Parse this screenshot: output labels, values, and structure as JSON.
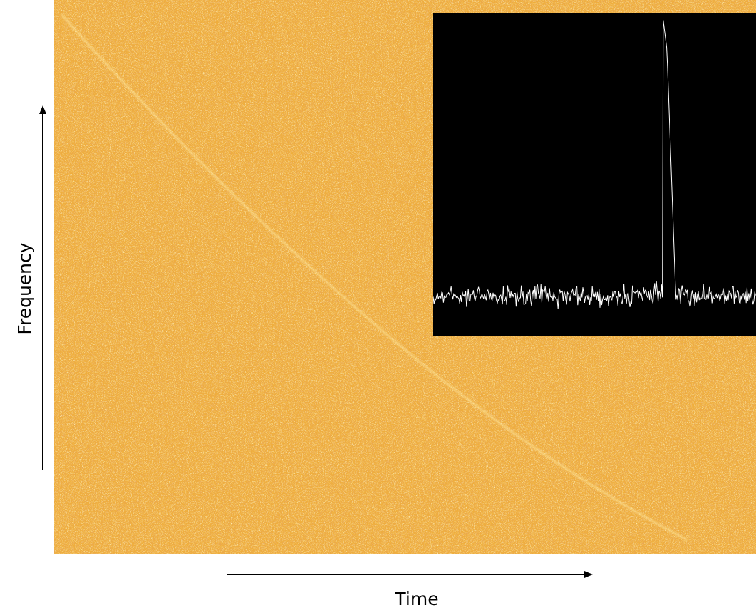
{
  "axes": {
    "y_label": "Frequency",
    "x_label": "Time"
  }
}
